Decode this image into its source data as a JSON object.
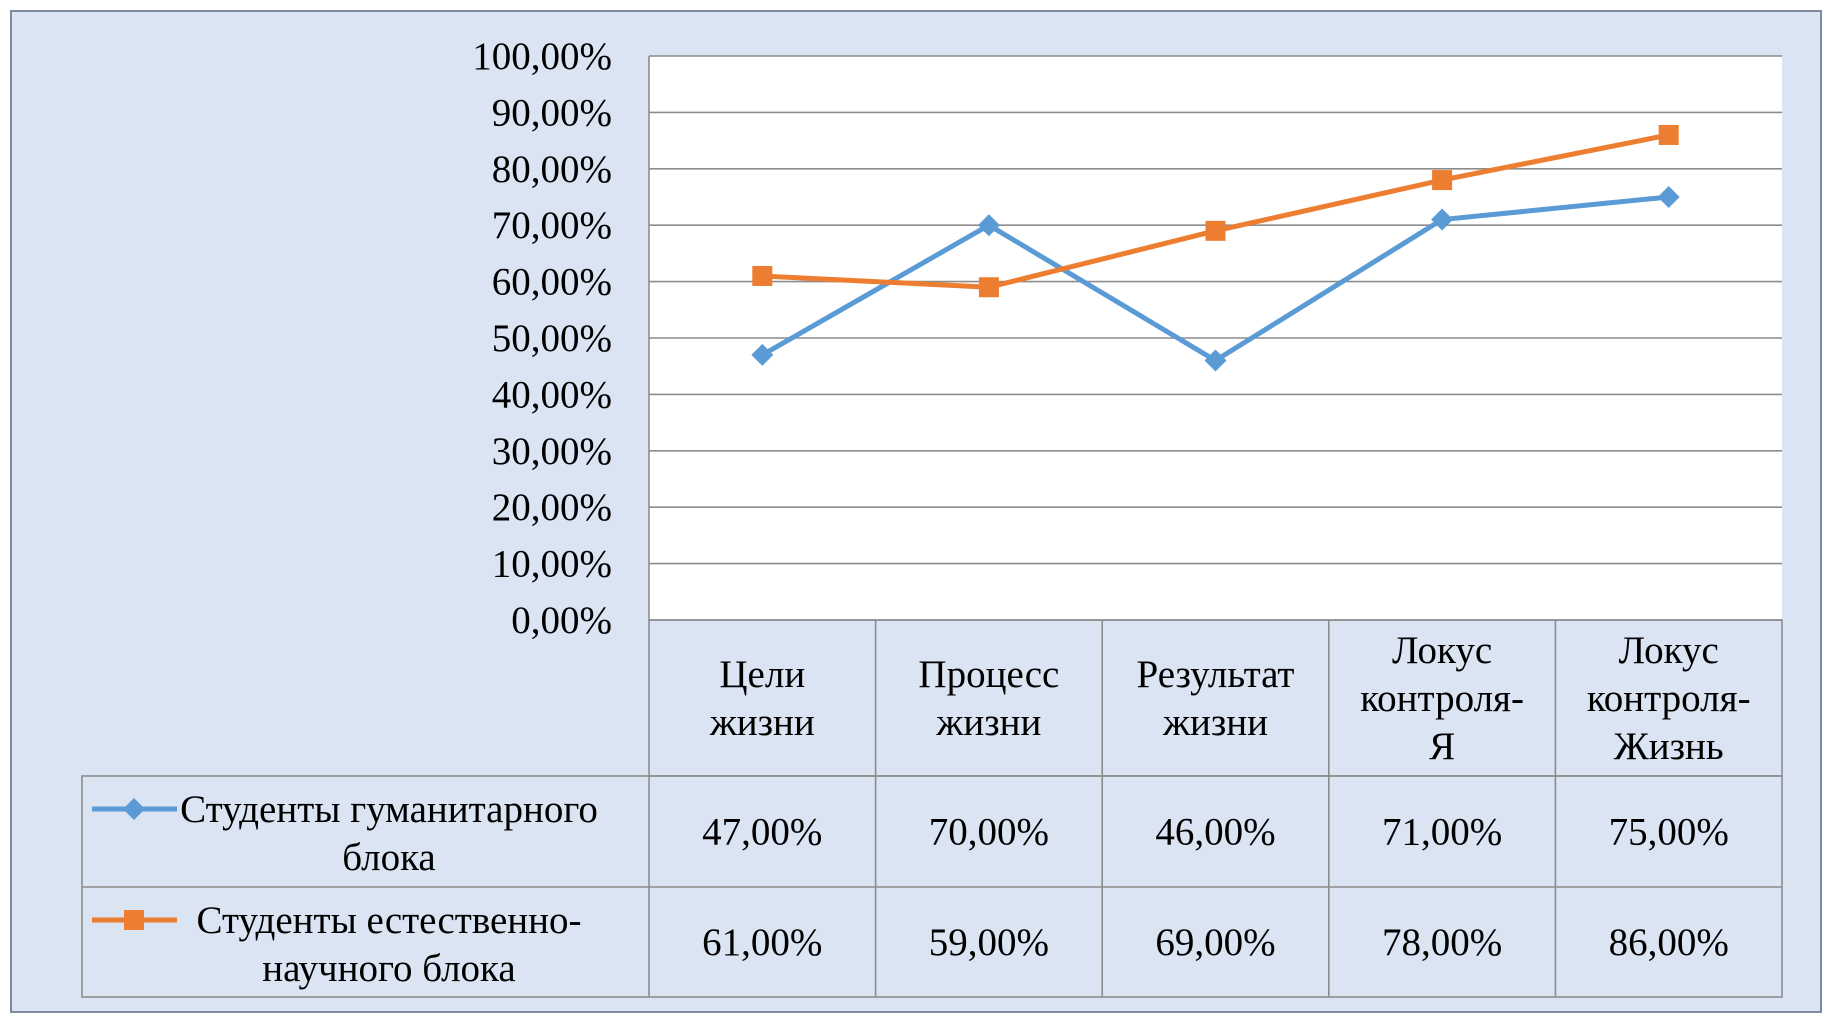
{
  "chart_data": {
    "type": "line",
    "categories": [
      [
        "Цели",
        "жизни"
      ],
      [
        "Процесс",
        "жизни"
      ],
      [
        "Результат",
        "жизни"
      ],
      [
        "Локус",
        "контроля-",
        "Я"
      ],
      [
        "Локус",
        "контроля-",
        "Жизнь"
      ]
    ],
    "series": [
      {
        "name": [
          "Студенты гуманитарного",
          "блока"
        ],
        "values": [
          47,
          70,
          46,
          71,
          75
        ],
        "labels": [
          "47,00%",
          "70,00%",
          "46,00%",
          "71,00%",
          "75,00%"
        ],
        "color": "#5b9bd5",
        "marker": "diamond"
      },
      {
        "name": [
          "Студенты естественно-",
          "научного блока"
        ],
        "values": [
          61,
          59,
          69,
          78,
          86
        ],
        "labels": [
          "61,00%",
          "59,00%",
          "69,00%",
          "78,00%",
          "86,00%"
        ],
        "color": "#ed7d31",
        "marker": "square"
      }
    ],
    "y_ticks": [
      "0,00%",
      "10,00%",
      "20,00%",
      "30,00%",
      "40,00%",
      "50,00%",
      "60,00%",
      "70,00%",
      "80,00%",
      "90,00%",
      "100,00%"
    ],
    "ylim": [
      0,
      100
    ],
    "grid": true,
    "legend": "data-table"
  }
}
